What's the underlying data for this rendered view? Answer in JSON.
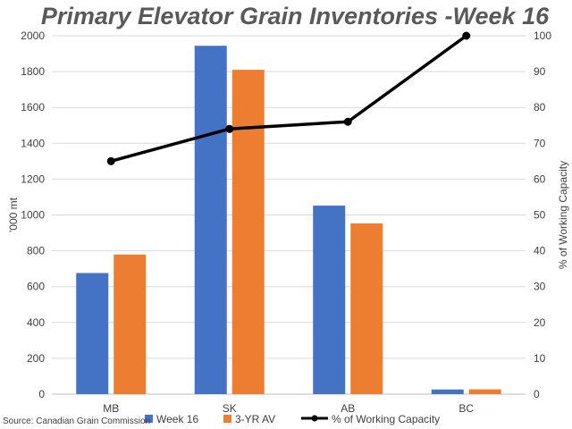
{
  "chart_data": {
    "type": "bar",
    "title": "Primary Elevator Grain Inventories -Week 16",
    "categories": [
      "MB",
      "SK",
      "AB",
      "BC"
    ],
    "series": [
      {
        "name": "Week 16",
        "type": "bar",
        "axis": "left",
        "color": "#4472C4",
        "values": [
          676,
          1944,
          1052,
          26
        ]
      },
      {
        "name": "3-YR AV",
        "type": "bar",
        "axis": "left",
        "color": "#ED7D31",
        "values": [
          779,
          1810,
          953,
          27
        ]
      },
      {
        "name": "% of Working Capacity",
        "type": "line",
        "axis": "right",
        "color": "#000000",
        "values": [
          65,
          74,
          76,
          100
        ]
      }
    ],
    "ylabel": "'000 mt",
    "y2label": "% of Working Capacity",
    "ylim": [
      0,
      2000
    ],
    "y2lim": [
      0,
      100
    ],
    "yticks": [
      "0",
      "200",
      "400",
      "600",
      "800",
      "1000",
      "1200",
      "1400",
      "1600",
      "1800",
      "2000"
    ],
    "y2ticks": [
      "0",
      "10",
      "20",
      "30",
      "40",
      "50",
      "60",
      "70",
      "80",
      "90",
      "100"
    ],
    "grid": true,
    "legend": "bottom",
    "source": "Source: Canadian Grain Commission"
  }
}
